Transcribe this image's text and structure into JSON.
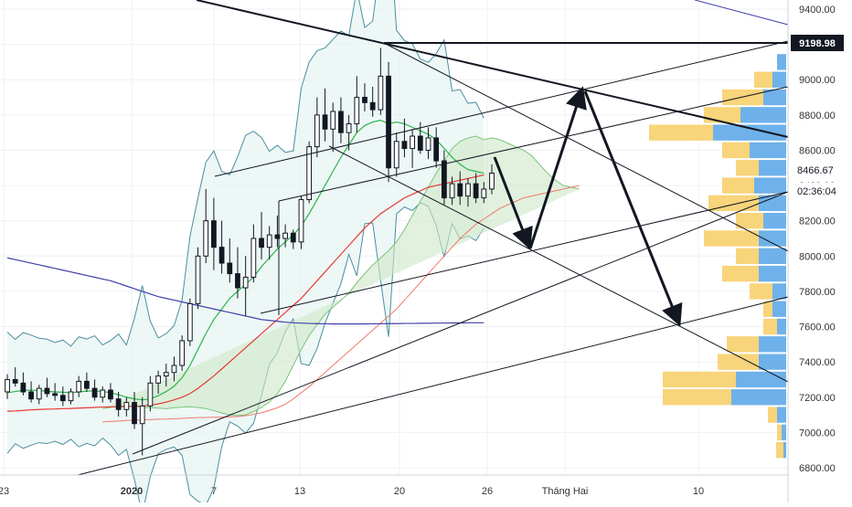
{
  "chart_data": {
    "type": "candlestick",
    "title": "",
    "y_axis": {
      "ticks": [
        "9400.00",
        "9200.00",
        "9000.00",
        "8800.00",
        "8600.00",
        "8400.00",
        "8200.00",
        "8000.00",
        "7800.00",
        "7600.00",
        "7400.00",
        "7200.00",
        "7000.00",
        "6800.00"
      ],
      "range": [
        6760,
        9500
      ]
    },
    "x_axis": {
      "labels": [
        "23",
        "2020",
        "7",
        "13",
        "20",
        "26",
        "Tháng Hai",
        "10"
      ],
      "bold_labels": [
        "2020"
      ]
    },
    "price_labels": {
      "resistance": "9198.98",
      "last_price": "8466.67",
      "countdown": "02:36:04"
    },
    "candles": [
      {
        "o": 7230,
        "h": 7330,
        "l": 7190,
        "c": 7300
      },
      {
        "o": 7300,
        "h": 7370,
        "l": 7260,
        "c": 7280
      },
      {
        "o": 7280,
        "h": 7340,
        "l": 7210,
        "c": 7230
      },
      {
        "o": 7230,
        "h": 7290,
        "l": 7170,
        "c": 7190
      },
      {
        "o": 7190,
        "h": 7270,
        "l": 7160,
        "c": 7250
      },
      {
        "o": 7250,
        "h": 7310,
        "l": 7200,
        "c": 7220
      },
      {
        "o": 7220,
        "h": 7280,
        "l": 7180,
        "c": 7210
      },
      {
        "o": 7210,
        "h": 7260,
        "l": 7150,
        "c": 7180
      },
      {
        "o": 7180,
        "h": 7250,
        "l": 7160,
        "c": 7230
      },
      {
        "o": 7230,
        "h": 7320,
        "l": 7200,
        "c": 7290
      },
      {
        "o": 7290,
        "h": 7340,
        "l": 7230,
        "c": 7250
      },
      {
        "o": 7250,
        "h": 7300,
        "l": 7180,
        "c": 7200
      },
      {
        "o": 7200,
        "h": 7260,
        "l": 7170,
        "c": 7240
      },
      {
        "o": 7240,
        "h": 7280,
        "l": 7170,
        "c": 7190
      },
      {
        "o": 7190,
        "h": 7230,
        "l": 7090,
        "c": 7130
      },
      {
        "o": 7130,
        "h": 7200,
        "l": 7090,
        "c": 7170
      },
      {
        "o": 7170,
        "h": 7230,
        "l": 7020,
        "c": 7050
      },
      {
        "o": 7050,
        "h": 7200,
        "l": 6870,
        "c": 7150
      },
      {
        "o": 7150,
        "h": 7320,
        "l": 7120,
        "c": 7280
      },
      {
        "o": 7280,
        "h": 7350,
        "l": 7220,
        "c": 7320
      },
      {
        "o": 7320,
        "h": 7390,
        "l": 7260,
        "c": 7340
      },
      {
        "o": 7340,
        "h": 7430,
        "l": 7290,
        "c": 7380
      },
      {
        "o": 7380,
        "h": 7550,
        "l": 7350,
        "c": 7520
      },
      {
        "o": 7520,
        "h": 7760,
        "l": 7490,
        "c": 7730
      },
      {
        "o": 7730,
        "h": 8050,
        "l": 7700,
        "c": 8000
      },
      {
        "o": 8000,
        "h": 8380,
        "l": 7960,
        "c": 8200
      },
      {
        "o": 8200,
        "h": 8330,
        "l": 7920,
        "c": 8050
      },
      {
        "o": 8050,
        "h": 8200,
        "l": 7900,
        "c": 7960
      },
      {
        "o": 7960,
        "h": 8100,
        "l": 7850,
        "c": 7900
      },
      {
        "o": 7900,
        "h": 8050,
        "l": 7760,
        "c": 7820
      },
      {
        "o": 7820,
        "h": 8000,
        "l": 7660,
        "c": 7880
      },
      {
        "o": 7880,
        "h": 8180,
        "l": 7850,
        "c": 8100
      },
      {
        "o": 8100,
        "h": 8250,
        "l": 7980,
        "c": 8050
      },
      {
        "o": 8050,
        "h": 8170,
        "l": 7980,
        "c": 8120
      },
      {
        "o": 8120,
        "h": 8230,
        "l": 8050,
        "c": 8100
      },
      {
        "o": 8100,
        "h": 8180,
        "l": 8050,
        "c": 8130
      },
      {
        "o": 8130,
        "h": 8150,
        "l": 8040,
        "c": 8080
      },
      {
        "o": 8080,
        "h": 8340,
        "l": 8040,
        "c": 8320
      },
      {
        "o": 8320,
        "h": 8650,
        "l": 8300,
        "c": 8620
      },
      {
        "o": 8620,
        "h": 8900,
        "l": 8560,
        "c": 8800
      },
      {
        "o": 8800,
        "h": 8950,
        "l": 8650,
        "c": 8720
      },
      {
        "o": 8720,
        "h": 8870,
        "l": 8590,
        "c": 8820
      },
      {
        "o": 8820,
        "h": 8900,
        "l": 8640,
        "c": 8700
      },
      {
        "o": 8700,
        "h": 8800,
        "l": 8600,
        "c": 8750
      },
      {
        "o": 8750,
        "h": 9020,
        "l": 8700,
        "c": 8900
      },
      {
        "o": 8900,
        "h": 8980,
        "l": 8820,
        "c": 8870
      },
      {
        "o": 8870,
        "h": 8960,
        "l": 8790,
        "c": 8830
      },
      {
        "o": 8830,
        "h": 9180,
        "l": 8800,
        "c": 9020
      },
      {
        "o": 9020,
        "h": 9100,
        "l": 8420,
        "c": 8500
      },
      {
        "o": 8500,
        "h": 8700,
        "l": 8450,
        "c": 8650
      },
      {
        "o": 8650,
        "h": 8780,
        "l": 8560,
        "c": 8610
      },
      {
        "o": 8610,
        "h": 8720,
        "l": 8500,
        "c": 8680
      },
      {
        "o": 8680,
        "h": 8760,
        "l": 8580,
        "c": 8600
      },
      {
        "o": 8600,
        "h": 8730,
        "l": 8550,
        "c": 8670
      },
      {
        "o": 8670,
        "h": 8730,
        "l": 8500,
        "c": 8540
      },
      {
        "o": 8540,
        "h": 8600,
        "l": 8290,
        "c": 8330
      },
      {
        "o": 8330,
        "h": 8450,
        "l": 8290,
        "c": 8410
      },
      {
        "o": 8410,
        "h": 8480,
        "l": 8290,
        "c": 8340
      },
      {
        "o": 8340,
        "h": 8440,
        "l": 8280,
        "c": 8410
      },
      {
        "o": 8410,
        "h": 8470,
        "l": 8300,
        "c": 8330
      },
      {
        "o": 8330,
        "h": 8420,
        "l": 8300,
        "c": 8380
      },
      {
        "o": 8380,
        "h": 8520,
        "l": 8350,
        "c": 8470
      }
    ],
    "moving_averages": [
      {
        "color": "#2bb54b",
        "values": [
          7225,
          7232,
          7238,
          7240,
          7238,
          7233,
          7230,
          7228,
          7225,
          7230,
          7234,
          7236,
          7232,
          7225,
          7214,
          7200,
          7190,
          7185,
          7190,
          7208,
          7232,
          7262,
          7310,
          7380,
          7470,
          7560,
          7640,
          7700,
          7760,
          7800,
          7840,
          7880,
          7940,
          7990,
          8040,
          8080,
          8120,
          8170,
          8240,
          8320,
          8400,
          8480,
          8560,
          8630,
          8700,
          8740,
          8760,
          8770,
          8750,
          8760,
          8750,
          8730,
          8710,
          8690,
          8660,
          8610,
          8560,
          8520,
          8490,
          8480,
          8470
        ]
      },
      {
        "color": "#e53935",
        "values": [
          7120,
          7122,
          7125,
          7128,
          7130,
          7132,
          7133,
          7135,
          7136,
          7138,
          7140,
          7142,
          7144,
          7145,
          7146,
          7147,
          7148,
          7150,
          7155,
          7162,
          7172,
          7185,
          7200,
          7220,
          7250,
          7285,
          7320,
          7360,
          7400,
          7440,
          7480,
          7520,
          7560,
          7600,
          7640,
          7680,
          7720,
          7760,
          7810,
          7860,
          7910,
          7960,
          8010,
          8060,
          8110,
          8160,
          8200,
          8240,
          8270,
          8300,
          8330,
          8350,
          8370,
          8390,
          8400,
          8410,
          8420,
          8430,
          8440,
          8450,
          8460
        ]
      },
      {
        "color": "#3f3fa8",
        "values": [
          7990,
          7980,
          7970,
          7960,
          7950,
          7940,
          7930,
          7920,
          7910,
          7900,
          7890,
          7880,
          7870,
          7860,
          7845,
          7830,
          7815,
          7800,
          7785,
          7770,
          7760,
          7750,
          7740,
          7730,
          7720,
          7710,
          7700,
          7690,
          7680,
          7670,
          7660,
          7650,
          7640,
          7635,
          7630,
          7625,
          7622,
          7620,
          7618,
          7617,
          7616,
          7615,
          7615,
          7615,
          7615,
          7615,
          7616,
          7616,
          7617,
          7617,
          7618,
          7618,
          7619,
          7619,
          7620,
          7620,
          7621,
          7621,
          7622,
          7622,
          7622
        ]
      }
    ],
    "volume_profile": [
      {
        "price": 9100,
        "buy": 0,
        "sell": 10
      },
      {
        "price": 9000,
        "buy": 20,
        "sell": 15
      },
      {
        "price": 8900,
        "buy": 45,
        "sell": 25
      },
      {
        "price": 8800,
        "buy": 40,
        "sell": 50
      },
      {
        "price": 8700,
        "buy": 70,
        "sell": 80
      },
      {
        "price": 8600,
        "buy": 30,
        "sell": 40
      },
      {
        "price": 8500,
        "buy": 25,
        "sell": 30
      },
      {
        "price": 8400,
        "buy": 35,
        "sell": 35
      },
      {
        "price": 8300,
        "buy": 55,
        "sell": 30
      },
      {
        "price": 8200,
        "buy": 30,
        "sell": 25
      },
      {
        "price": 8100,
        "buy": 60,
        "sell": 30
      },
      {
        "price": 8000,
        "buy": 25,
        "sell": 30
      },
      {
        "price": 7900,
        "buy": 40,
        "sell": 30
      },
      {
        "price": 7800,
        "buy": 25,
        "sell": 15
      },
      {
        "price": 7700,
        "buy": 10,
        "sell": 15
      },
      {
        "price": 7600,
        "buy": 15,
        "sell": 10
      },
      {
        "price": 7500,
        "buy": 35,
        "sell": 30
      },
      {
        "price": 7400,
        "buy": 45,
        "sell": 30
      },
      {
        "price": 7300,
        "buy": 80,
        "sell": 55
      },
      {
        "price": 7200,
        "buy": 75,
        "sell": 60
      },
      {
        "price": 7100,
        "buy": 10,
        "sell": 10
      },
      {
        "price": 7000,
        "buy": 5,
        "sell": 5
      },
      {
        "price": 6900,
        "buy": 8,
        "sell": 3
      }
    ]
  }
}
